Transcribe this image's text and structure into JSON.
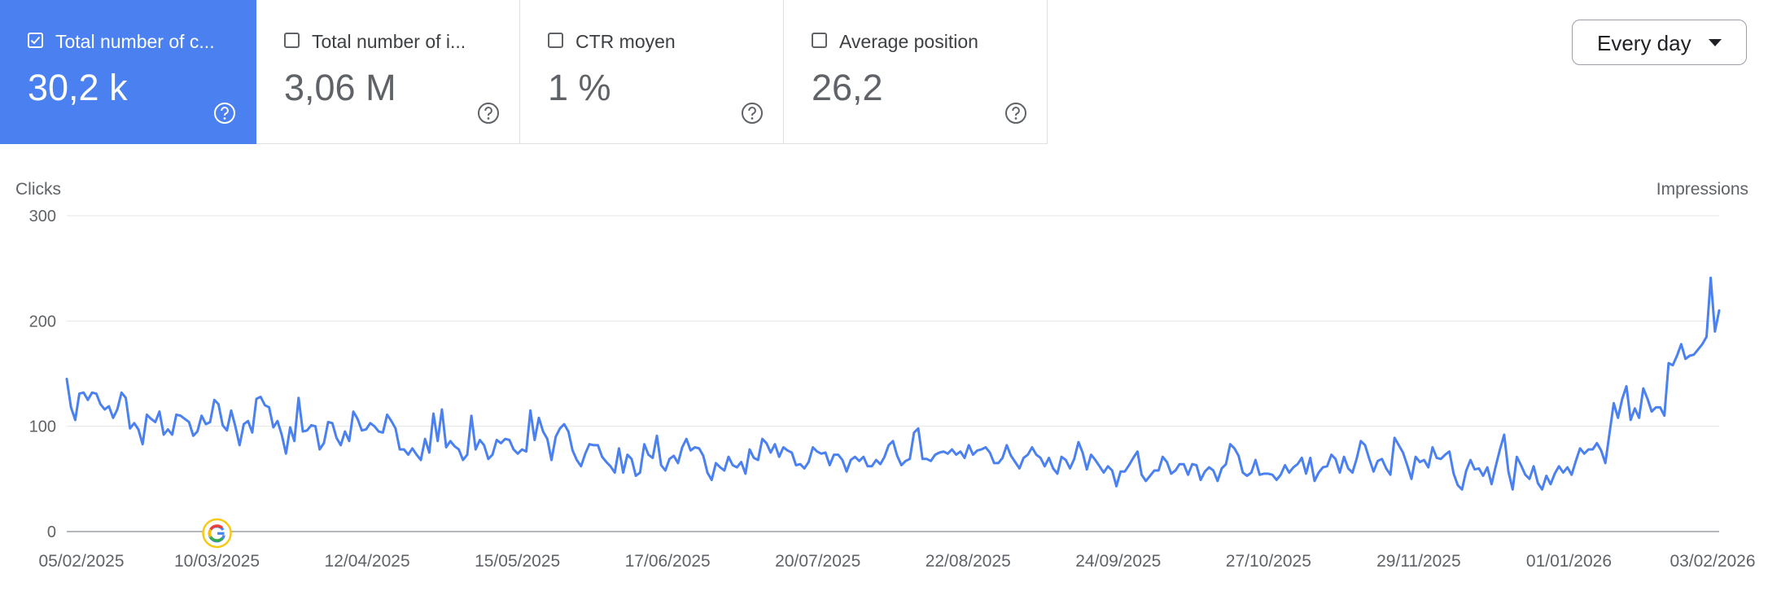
{
  "cards": [
    {
      "label": "Total number of c...",
      "value": "30,2 k",
      "checked": true
    },
    {
      "label": "Total number of i...",
      "value": "3,06 M",
      "checked": false
    },
    {
      "label": "CTR moyen",
      "value": "1 %",
      "checked": false
    },
    {
      "label": "Average position",
      "value": "26,2",
      "checked": false
    }
  ],
  "range_selector": {
    "label": "Every day"
  },
  "colors": {
    "accent": "#4a80ef",
    "line": "#4a80ef"
  },
  "chart_data": {
    "type": "line",
    "ylabel": "Clicks",
    "y2label": "Impressions",
    "ylim": [
      0,
      300
    ],
    "yticks": [
      "0",
      "100",
      "200",
      "300"
    ],
    "xlim": [
      "2025-02-05",
      "2026-02-03"
    ],
    "xticks": [
      "05/02/2025",
      "10/03/2025",
      "12/04/2025",
      "15/05/2025",
      "17/06/2025",
      "20/07/2025",
      "22/08/2025",
      "24/09/2025",
      "27/10/2025",
      "29/11/2025",
      "01/01/2026",
      "03/02/2026"
    ],
    "annotation": {
      "date": "2025-03-10",
      "icon": "google-update-icon"
    },
    "series": [
      {
        "start": "2025-02-05",
        "interval": "1 day",
        "values": [
          145,
          118,
          106,
          131,
          132,
          125,
          132,
          131,
          121,
          116,
          119,
          108,
          116,
          132,
          127,
          98,
          103,
          97,
          83,
          111,
          107,
          104,
          114,
          92,
          97,
          92,
          111,
          110,
          107,
          104,
          91,
          95,
          110,
          102,
          104,
          125,
          121,
          101,
          96,
          115,
          100,
          82,
          102,
          105,
          94,
          126,
          128,
          120,
          118,
          99,
          105,
          92,
          74,
          99,
          86,
          127,
          95,
          96,
          101,
          100,
          78,
          84,
          104,
          103,
          89,
          82,
          95,
          86,
          114,
          107,
          96,
          97,
          103,
          100,
          95,
          94,
          111,
          105,
          98,
          78,
          78,
          73,
          79,
          73,
          68,
          88,
          75,
          112,
          86,
          116,
          80,
          86,
          81,
          78,
          68,
          73,
          110,
          78,
          87,
          82,
          69,
          73,
          87,
          84,
          88,
          87,
          78,
          74,
          78,
          76,
          115,
          87,
          108,
          95,
          88,
          68,
          90,
          98,
          102,
          95,
          77,
          68,
          62,
          74,
          83,
          82,
          82,
          71,
          66,
          62,
          56,
          79,
          56,
          73,
          69,
          53,
          56,
          83,
          73,
          70,
          91,
          63,
          58,
          69,
          72,
          65,
          80,
          88,
          77,
          80,
          79,
          72,
          56,
          49,
          65,
          61,
          58,
          71,
          63,
          61,
          66,
          55,
          78,
          70,
          68,
          88,
          84,
          75,
          83,
          71,
          80,
          77,
          75,
          63,
          64,
          60,
          66,
          80,
          76,
          74,
          75,
          63,
          73,
          73,
          68,
          57,
          68,
          71,
          67,
          71,
          62,
          62,
          68,
          64,
          71,
          82,
          86,
          72,
          63,
          67,
          69,
          94,
          98,
          69,
          69,
          67,
          73,
          75,
          76,
          74,
          78,
          73,
          76,
          70,
          82,
          73,
          77,
          78,
          80,
          75,
          65,
          65,
          70,
          82,
          72,
          66,
          60,
          70,
          73,
          80,
          73,
          70,
          62,
          70,
          60,
          55,
          71,
          68,
          60,
          69,
          85,
          75,
          59,
          73,
          68,
          62,
          56,
          62,
          58,
          43,
          57,
          57,
          63,
          70,
          76,
          54,
          48,
          53,
          58,
          58,
          71,
          66,
          55,
          58,
          64,
          64,
          54,
          64,
          63,
          49,
          57,
          61,
          58,
          48,
          60,
          64,
          83,
          79,
          72,
          56,
          53,
          56,
          68,
          54,
          55,
          55,
          54,
          49,
          54,
          63,
          56,
          61,
          64,
          70,
          55,
          70,
          48,
          56,
          61,
          62,
          73,
          69,
          56,
          71,
          60,
          56,
          69,
          86,
          82,
          69,
          57,
          67,
          69,
          60,
          54,
          89,
          82,
          75,
          63,
          50,
          71,
          66,
          68,
          61,
          80,
          70,
          69,
          73,
          76,
          55,
          44,
          40,
          58,
          68,
          59,
          60,
          53,
          61,
          45,
          62,
          78,
          92,
          57,
          40,
          71,
          63,
          54,
          50,
          62,
          46,
          40,
          53,
          45,
          55,
          62,
          56,
          61,
          54,
          67,
          79,
          74,
          78,
          78,
          84,
          77,
          65,
          94,
          122,
          108,
          126,
          138,
          106,
          117,
          108,
          136,
          126,
          114,
          118,
          118,
          110,
          160,
          158,
          167,
          178,
          164,
          167,
          168,
          173,
          178,
          185,
          241,
          190,
          210
        ]
      }
    ]
  }
}
